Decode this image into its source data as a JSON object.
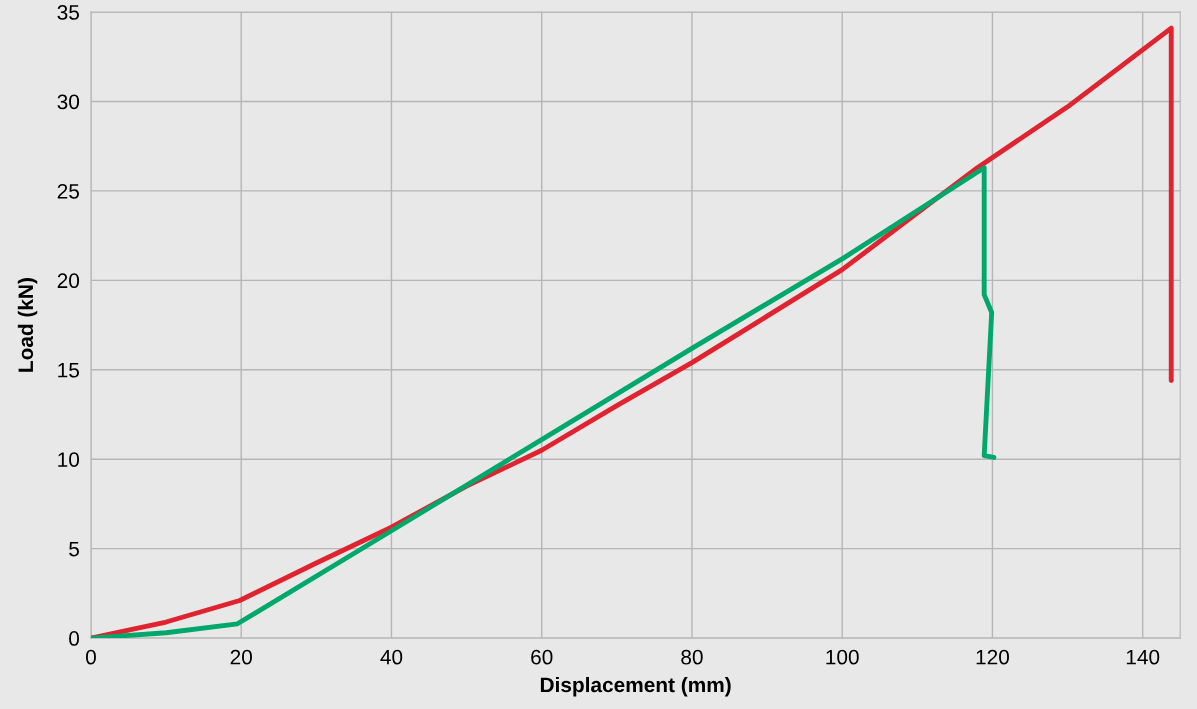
{
  "chart_data": {
    "type": "line",
    "xlabel": "Displacement (mm)",
    "ylabel": "Load (kN)",
    "xlim": [
      0,
      145
    ],
    "ylim": [
      0,
      35
    ],
    "xticks": [
      0,
      20,
      40,
      60,
      80,
      100,
      120,
      140
    ],
    "yticks": [
      0,
      5,
      10,
      15,
      20,
      25,
      30,
      35
    ],
    "grid": true,
    "marker": "none",
    "line_style": "solid",
    "series": [
      {
        "color": "#e0242f",
        "x": [
          0,
          10,
          19.8,
          30,
          40,
          50,
          60,
          70,
          80,
          90,
          100,
          118,
          130,
          143.8,
          143.8
        ],
        "values": [
          0,
          0.9,
          2.1,
          4.2,
          6.2,
          8.5,
          10.5,
          13.0,
          15.4,
          18.0,
          20.6,
          26.3,
          29.7,
          34.1,
          14.4
        ]
      },
      {
        "color": "#00a86b",
        "x": [
          0,
          10,
          19.5,
          40,
          60,
          80,
          100,
          118.9,
          118.9,
          119.9,
          118.9,
          120.2
        ],
        "values": [
          0,
          0.3,
          0.8,
          6.0,
          11.1,
          16.2,
          21.2,
          26.3,
          19.2,
          18.2,
          10.2,
          10.1
        ]
      }
    ]
  }
}
